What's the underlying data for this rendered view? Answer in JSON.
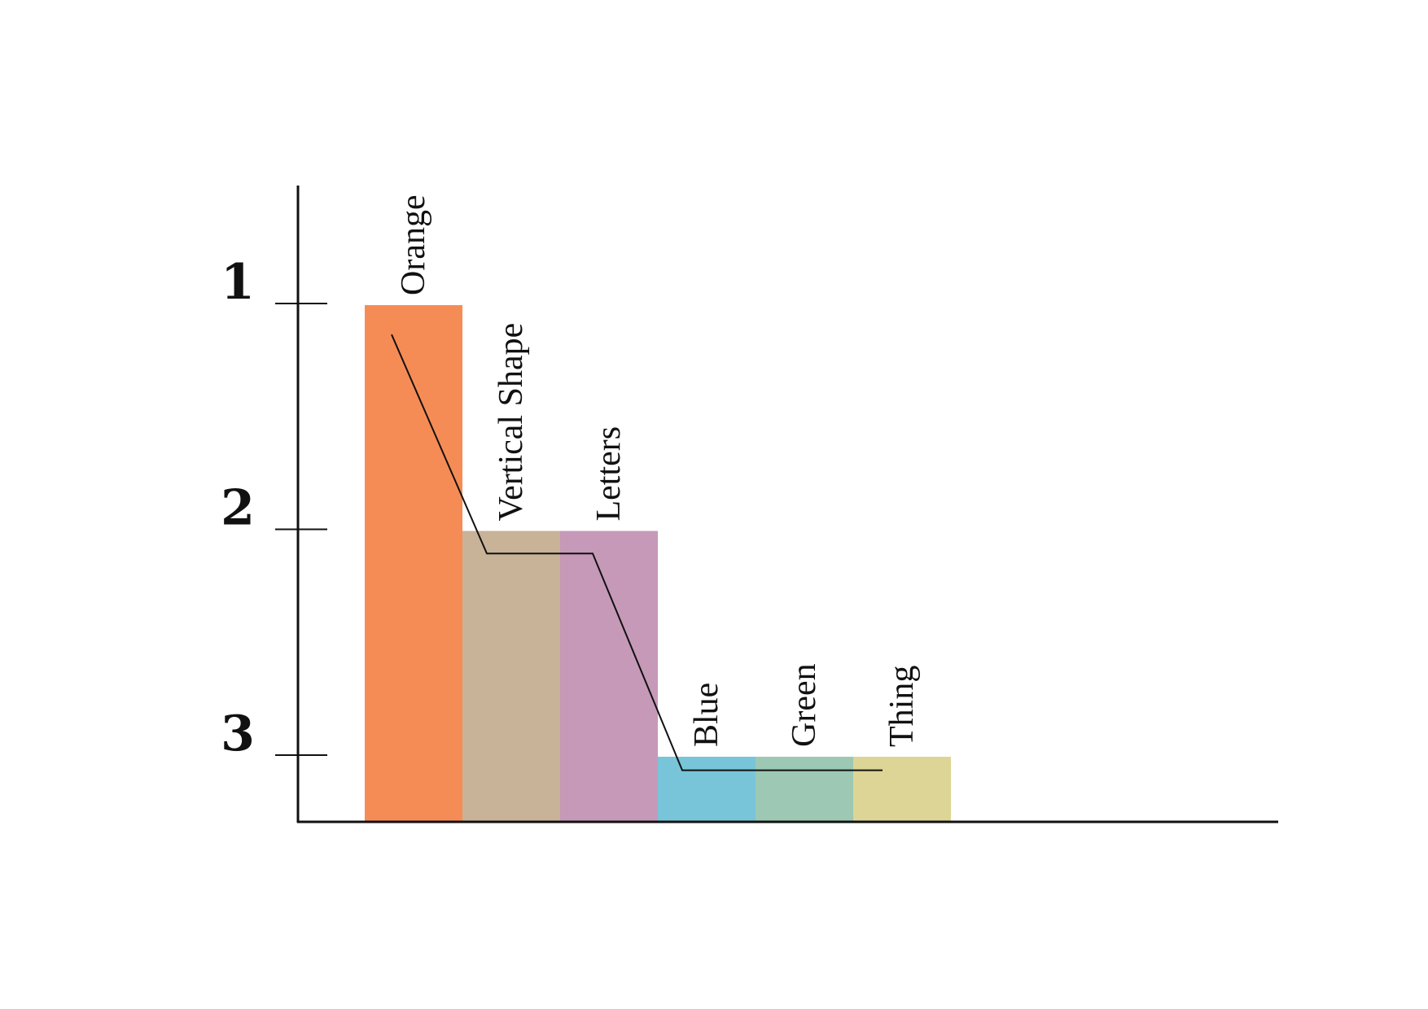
{
  "chart_data": {
    "type": "bar",
    "categories": [
      "Orange",
      "Vertical Shape",
      "Letters",
      "Blue",
      "Green",
      "Thing"
    ],
    "values": [
      1,
      2,
      2,
      3,
      3,
      3
    ],
    "colors": [
      "#F68C55",
      "#C8B298",
      "#C699B8",
      "#78C5D9",
      "#9CC8B4",
      "#DDD595"
    ],
    "yticks": [
      "1",
      "2",
      "3"
    ],
    "ytick_values": [
      1,
      2,
      3
    ],
    "ylim": [
      0.74,
      3.3
    ],
    "y_inverted": true,
    "bar_labels_rotated": true,
    "grid": false,
    "legend": "none",
    "overlay_line": {
      "type": "line",
      "values": [
        1.13,
        2.1,
        2.1,
        3.06,
        3.06,
        3.06
      ],
      "color": "#111111"
    },
    "title": "",
    "xlabel": "",
    "ylabel": ""
  }
}
